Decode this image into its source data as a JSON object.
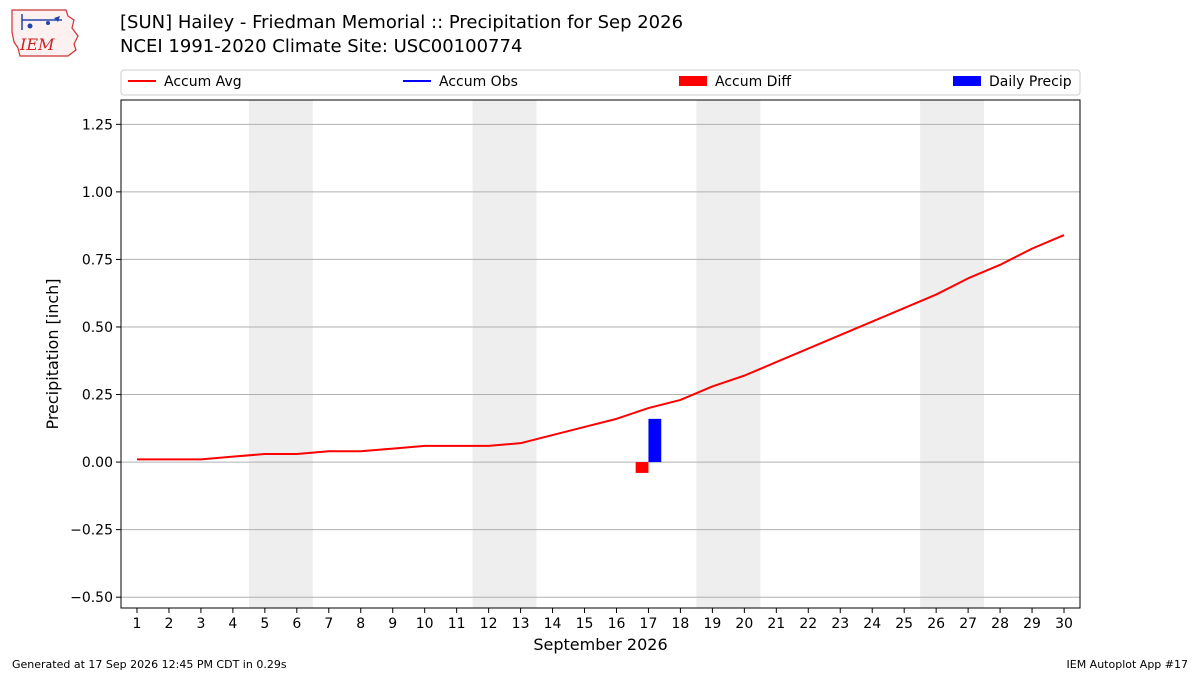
{
  "header": {
    "title_line1": "[SUN] Hailey - Friedman Memorial :: Precipitation for Sep 2026",
    "title_line2": "NCEI 1991-2020 Climate Site: USC00100774",
    "logo_text": "IEM"
  },
  "footer": {
    "left": "Generated at 17 Sep 2026 12:45 PM CDT in 0.29s",
    "right": "IEM Autoplot App #17"
  },
  "colors": {
    "accum_avg": "#ff0000",
    "accum_obs": "#0000ff",
    "accum_diff": "#ff0000",
    "daily_precip": "#0000ff",
    "weekend_band": "#eeeeee",
    "grid": "#b0b0b0"
  },
  "chart_data": {
    "type": "line",
    "xlabel": "September 2026",
    "ylabel": "Precipitation [inch]",
    "x": [
      1,
      2,
      3,
      4,
      5,
      6,
      7,
      8,
      9,
      10,
      11,
      12,
      13,
      14,
      15,
      16,
      17,
      18,
      19,
      20,
      21,
      22,
      23,
      24,
      25,
      26,
      27,
      28,
      29,
      30
    ],
    "xticks": [
      "1",
      "2",
      "3",
      "4",
      "5",
      "6",
      "7",
      "8",
      "9",
      "10",
      "11",
      "12",
      "13",
      "14",
      "15",
      "16",
      "17",
      "18",
      "19",
      "20",
      "21",
      "22",
      "23",
      "24",
      "25",
      "26",
      "27",
      "28",
      "29",
      "30"
    ],
    "xlim": [
      0.5,
      30.5
    ],
    "ylim": [
      -0.54,
      1.34
    ],
    "yticks": [
      -0.5,
      -0.25,
      0.0,
      0.25,
      0.5,
      0.75,
      1.0,
      1.25
    ],
    "ytick_labels": [
      "−0.50",
      "−0.25",
      "0.00",
      "0.25",
      "0.50",
      "0.75",
      "1.00",
      "1.25"
    ],
    "grid": "horizontal",
    "legend_position": "top, above plot",
    "legend": [
      {
        "label": "Accum Avg",
        "kind": "line",
        "color": "#ff0000"
      },
      {
        "label": "Accum Obs",
        "kind": "line",
        "color": "#0000ff"
      },
      {
        "label": "Accum Diff",
        "kind": "bar",
        "color": "#ff0000"
      },
      {
        "label": "Daily Precip",
        "kind": "bar",
        "color": "#0000ff"
      }
    ],
    "weekend_bands": [
      [
        5,
        6
      ],
      [
        12,
        13
      ],
      [
        19,
        20
      ],
      [
        26,
        27
      ]
    ],
    "series": [
      {
        "name": "Accum Avg",
        "kind": "line",
        "color": "#ff0000",
        "values": [
          0.01,
          0.01,
          0.01,
          0.02,
          0.03,
          0.03,
          0.04,
          0.04,
          0.05,
          0.06,
          0.06,
          0.06,
          0.07,
          0.1,
          0.13,
          0.16,
          0.2,
          0.23,
          0.28,
          0.32,
          0.37,
          0.42,
          0.47,
          0.52,
          0.57,
          0.62,
          0.68,
          0.73,
          0.79,
          0.84
        ]
      },
      {
        "name": "Accum Diff",
        "kind": "bar",
        "color": "#ff0000",
        "points": [
          {
            "x": 17,
            "y": -0.04
          }
        ]
      },
      {
        "name": "Daily Precip",
        "kind": "bar",
        "color": "#0000ff",
        "points": [
          {
            "x": 17,
            "y": 0.16
          }
        ]
      }
    ]
  }
}
